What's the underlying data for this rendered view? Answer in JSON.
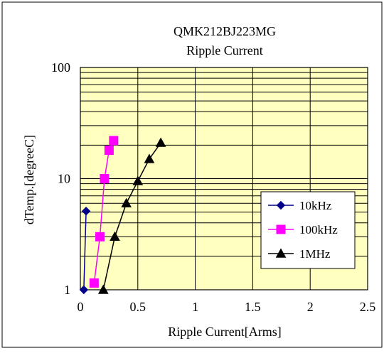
{
  "chart_data": {
    "type": "line",
    "title": "QMK212BJ223MG",
    "subtitle": "Ripple Current",
    "xlabel": "Ripple Current[Arms]",
    "ylabel": "dTemp.[degreeC]",
    "xlim": [
      0,
      2.5
    ],
    "ylim": [
      1,
      100
    ],
    "yscale": "log",
    "xticks": [
      0,
      0.5,
      1,
      1.5,
      2,
      2.5
    ],
    "xtick_labels": [
      "0",
      "0.5",
      "1",
      "1.5",
      "2",
      "2.5"
    ],
    "yticks": [
      1,
      10,
      100
    ],
    "ytick_labels": [
      "1",
      "10",
      "100"
    ],
    "grid": true,
    "plot_background": "#ffffc0",
    "legend_position": "right",
    "series": [
      {
        "name": "10kHz",
        "color": "#00008b",
        "marker": "diamond",
        "x": [
          0.03,
          0.05
        ],
        "y": [
          1,
          5.1
        ]
      },
      {
        "name": "100kHz",
        "color": "#ff00ff",
        "marker": "square",
        "x": [
          0.12,
          0.17,
          0.21,
          0.25,
          0.29
        ],
        "y": [
          1.15,
          3,
          10,
          18,
          22
        ]
      },
      {
        "name": "1MHz",
        "color": "#000000",
        "marker": "triangle",
        "x": [
          0.2,
          0.3,
          0.4,
          0.5,
          0.6,
          0.7
        ],
        "y": [
          1,
          3,
          6,
          9.5,
          15,
          21
        ]
      }
    ]
  }
}
